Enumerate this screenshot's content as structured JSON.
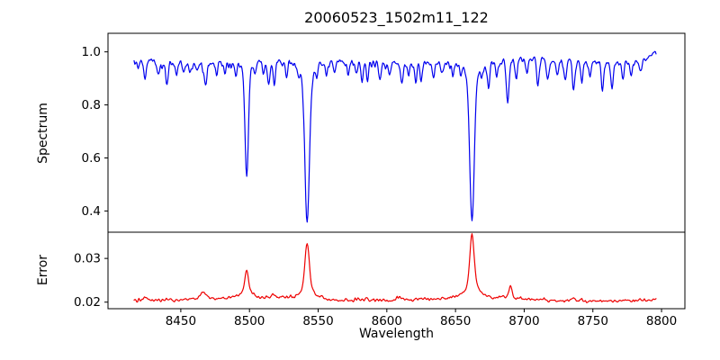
{
  "figure": {
    "title": "20060523_1502m11_122",
    "background": "#ffffff"
  },
  "chart_data": {
    "type": "line",
    "title": "20060523_1502m11_122",
    "xlabel": "Wavelength",
    "xlim": [
      8397,
      8817
    ],
    "x_ticks": [
      8450,
      8500,
      8550,
      8600,
      8650,
      8700,
      8750,
      8800
    ],
    "x_data_range": [
      8416,
      8796
    ],
    "sample_step": 0.5,
    "grid": false,
    "legend": "none",
    "panels": [
      {
        "name": "spectrum",
        "ylabel": "Spectrum",
        "color": "#0000ee",
        "ylim": [
          0.32,
          1.07
        ],
        "y_ticks": [
          1.0,
          0.8,
          0.6,
          0.4
        ],
        "y_tick_labels": [
          "1.0",
          "0.8",
          "0.6",
          "0.4"
        ],
        "continuum": 0.966,
        "continuum_wave_amp": 0.007,
        "continuum_wave_period": 160,
        "continuum_wave_phase": 8495,
        "end_ramp_start": 8782,
        "end_ramp_slope": 0.003,
        "value_floor": 0.335,
        "noise": {
          "seed": 20060523,
          "amp": 0.013,
          "dip_prob": 0.1,
          "dip_max": 0.035
        },
        "absorption_lines": [
          {
            "c": 8419,
            "d": 0.03,
            "w": 0.8
          },
          {
            "c": 8424,
            "d": 0.06,
            "w": 0.9
          },
          {
            "c": 8434,
            "d": 0.045,
            "w": 0.8
          },
          {
            "c": 8440,
            "d": 0.09,
            "w": 0.9
          },
          {
            "c": 8447,
            "d": 0.05,
            "w": 0.8
          },
          {
            "c": 8452,
            "d": 0.035,
            "w": 0.8
          },
          {
            "c": 8457,
            "d": 0.03,
            "w": 0.8
          },
          {
            "c": 8462,
            "d": 0.035,
            "w": 0.8
          },
          {
            "c": 8468,
            "d": 0.09,
            "w": 1.0
          },
          {
            "c": 8476,
            "d": 0.05,
            "w": 0.8
          },
          {
            "c": 8482,
            "d": 0.04,
            "w": 0.8
          },
          {
            "c": 8490,
            "d": 0.045,
            "w": 0.8
          },
          {
            "c": 8498,
            "d": 0.435,
            "w": 1.2,
            "lw": 3.0
          },
          {
            "c": 8504,
            "d": 0.04,
            "w": 0.8
          },
          {
            "c": 8510,
            "d": 0.05,
            "w": 0.8
          },
          {
            "c": 8514,
            "d": 0.1,
            "w": 0.9
          },
          {
            "c": 8518,
            "d": 0.08,
            "w": 0.9
          },
          {
            "c": 8527,
            "d": 0.06,
            "w": 0.8
          },
          {
            "c": 8536,
            "d": 0.04,
            "w": 0.8
          },
          {
            "c": 8542,
            "d": 0.617,
            "w": 1.6,
            "lw": 4.5
          },
          {
            "c": 8549,
            "d": 0.04,
            "w": 0.8
          },
          {
            "c": 8556,
            "d": 0.05,
            "w": 0.8
          },
          {
            "c": 8562,
            "d": 0.04,
            "w": 0.8
          },
          {
            "c": 8572,
            "d": 0.05,
            "w": 0.8
          },
          {
            "c": 8578,
            "d": 0.04,
            "w": 0.8
          },
          {
            "c": 8582,
            "d": 0.065,
            "w": 0.8
          },
          {
            "c": 8586,
            "d": 0.075,
            "w": 0.8
          },
          {
            "c": 8595,
            "d": 0.07,
            "w": 0.9
          },
          {
            "c": 8602,
            "d": 0.04,
            "w": 0.8
          },
          {
            "c": 8611,
            "d": 0.08,
            "w": 0.9
          },
          {
            "c": 8616,
            "d": 0.05,
            "w": 0.8
          },
          {
            "c": 8621,
            "d": 0.06,
            "w": 0.8
          },
          {
            "c": 8625,
            "d": 0.07,
            "w": 0.8
          },
          {
            "c": 8634,
            "d": 0.055,
            "w": 0.8
          },
          {
            "c": 8640,
            "d": 0.04,
            "w": 0.8
          },
          {
            "c": 8648,
            "d": 0.05,
            "w": 0.8
          },
          {
            "c": 8654,
            "d": 0.04,
            "w": 0.8
          },
          {
            "c": 8662,
            "d": 0.61,
            "w": 1.6,
            "lw": 4.5
          },
          {
            "c": 8669,
            "d": 0.05,
            "w": 0.8
          },
          {
            "c": 8674,
            "d": 0.1,
            "w": 0.9
          },
          {
            "c": 8680,
            "d": 0.06,
            "w": 0.8
          },
          {
            "c": 8688,
            "d": 0.165,
            "w": 1.0
          },
          {
            "c": 8694,
            "d": 0.07,
            "w": 0.8
          },
          {
            "c": 8702,
            "d": 0.05,
            "w": 0.8
          },
          {
            "c": 8710,
            "d": 0.09,
            "w": 0.9
          },
          {
            "c": 8717,
            "d": 0.08,
            "w": 0.9
          },
          {
            "c": 8724,
            "d": 0.05,
            "w": 0.8
          },
          {
            "c": 8730,
            "d": 0.08,
            "w": 0.8
          },
          {
            "c": 8736,
            "d": 0.1,
            "w": 0.9
          },
          {
            "c": 8742,
            "d": 0.06,
            "w": 0.8
          },
          {
            "c": 8748,
            "d": 0.05,
            "w": 0.8
          },
          {
            "c": 8757,
            "d": 0.1,
            "w": 0.9
          },
          {
            "c": 8764,
            "d": 0.1,
            "w": 0.9
          },
          {
            "c": 8772,
            "d": 0.06,
            "w": 0.8
          },
          {
            "c": 8778,
            "d": 0.05,
            "w": 0.8
          },
          {
            "c": 8785,
            "d": 0.04,
            "w": 0.8
          }
        ]
      },
      {
        "name": "error",
        "ylabel": "Error",
        "color": "#ee0000",
        "ylim": [
          0.0185,
          0.036
        ],
        "y_ticks": [
          0.03,
          0.02
        ],
        "y_tick_labels": [
          "0.03",
          "0.02"
        ],
        "baseline": 0.0205,
        "baseline_wave_amp": 0.0003,
        "baseline_wave_period": 170,
        "baseline_wave_phase": 8450,
        "noise": {
          "seed": 1502,
          "amp": 0.00042,
          "spike_prob": 0.05,
          "spike_max": 0.0012
        },
        "peaks": [
          {
            "c": 8424,
            "h": 0.0009,
            "w": 1.2
          },
          {
            "c": 8466,
            "h": 0.0016,
            "w": 1.5
          },
          {
            "c": 8498,
            "h": 0.0063,
            "w": 1.3
          },
          {
            "c": 8517,
            "h": 0.0008,
            "w": 1.0
          },
          {
            "c": 8542,
            "h": 0.0133,
            "w": 1.4
          },
          {
            "c": 8585,
            "h": 0.0009,
            "w": 1.0
          },
          {
            "c": 8610,
            "h": 0.0007,
            "w": 1.0
          },
          {
            "c": 8662,
            "h": 0.0146,
            "w": 1.4
          },
          {
            "c": 8690,
            "h": 0.0028,
            "w": 1.0
          },
          {
            "c": 8736,
            "h": 0.0008,
            "w": 1.0
          }
        ]
      }
    ]
  }
}
